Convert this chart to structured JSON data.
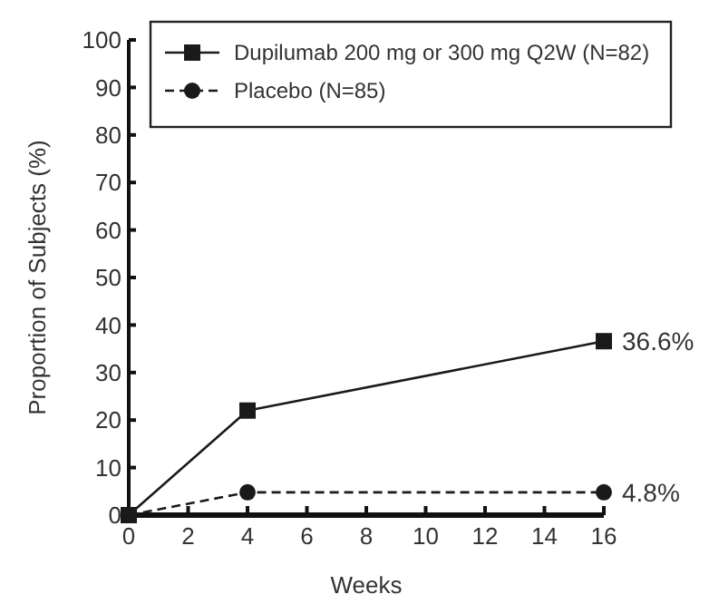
{
  "chart_data": {
    "type": "line",
    "xlabel": "Weeks",
    "ylabel": "Proportion of Subjects (%)",
    "x": [
      0,
      4,
      16
    ],
    "series": [
      {
        "name": "Dupilumab 200 mg or 300 mg Q2W (N=82)",
        "color": "#1a1a1a",
        "values": [
          0,
          22,
          36.6
        ],
        "marker": "square",
        "line_style": "solid",
        "value_labels": [
          null,
          null,
          "36.6%"
        ]
      },
      {
        "name": "Placebo (N=85)",
        "color": "#1a1a1a",
        "values": [
          0,
          4.8,
          4.8
        ],
        "marker": "circle",
        "line_style": "dashed",
        "value_labels": [
          null,
          null,
          "4.8%"
        ]
      }
    ],
    "xlim": [
      0,
      16
    ],
    "xticks": [
      0,
      2,
      4,
      6,
      8,
      10,
      12,
      14,
      16
    ],
    "ylim": [
      0,
      100
    ],
    "yticks": [
      0,
      10,
      20,
      30,
      40,
      50,
      60,
      70,
      80,
      90,
      100
    ],
    "grid": false,
    "legend": "top"
  }
}
